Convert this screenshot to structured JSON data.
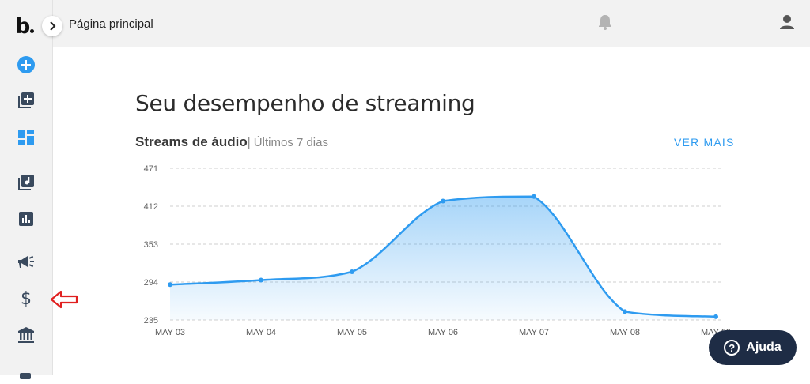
{
  "topbar": {
    "page_title": "Página principal"
  },
  "sidebar": {
    "icons": [
      "add-circle-icon",
      "add-release-icon",
      "dashboard-icon",
      "library-icon",
      "stats-icon",
      "promote-icon",
      "money-icon",
      "bank-icon"
    ],
    "active": "dashboard-icon"
  },
  "main": {
    "heading": "Seu desempenho de streaming",
    "subhead_label": "Streams de áudio",
    "subhead_range": "| Últimos 7 dias",
    "see_more": "VER MAIS"
  },
  "help": {
    "label": "Ajuda",
    "icon": "?"
  },
  "colors": {
    "accent": "#2e9bf0",
    "help_bg": "#1e2c45",
    "arrow": "#e02020"
  },
  "chart_data": {
    "type": "area",
    "x": [
      "MAY 03",
      "MAY 04",
      "MAY 05",
      "MAY 06",
      "MAY 07",
      "MAY 08",
      "MAY 09"
    ],
    "values": [
      290,
      297,
      310,
      420,
      427,
      248,
      240
    ],
    "yticks": [
      471,
      412,
      353,
      294,
      235
    ],
    "ylim": [
      235,
      471
    ],
    "grid": true,
    "color": "#2e9bf0"
  }
}
